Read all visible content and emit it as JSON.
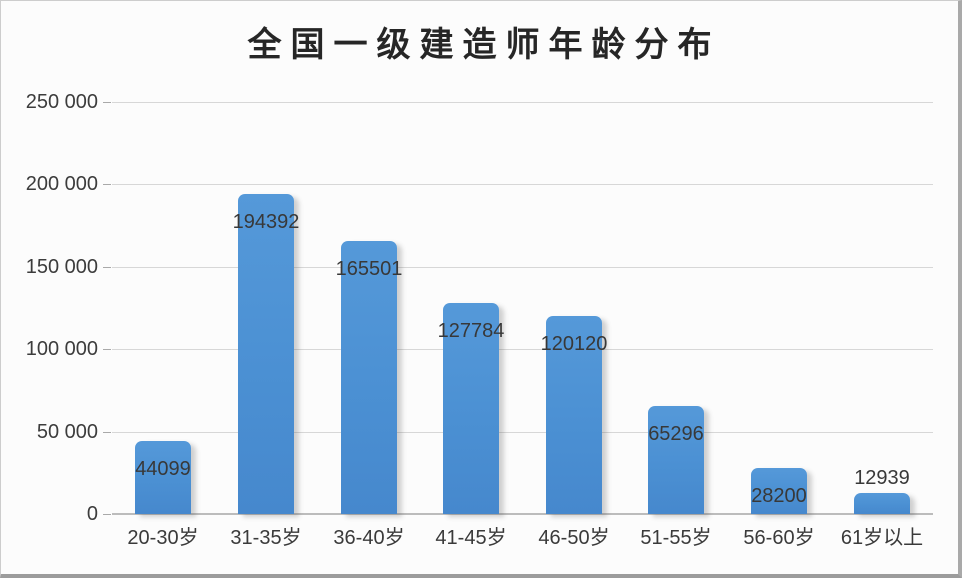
{
  "chart_data": {
    "type": "bar",
    "title": "全国一级建造师年龄分布",
    "categories": [
      "20-30岁",
      "31-35岁",
      "36-40岁",
      "41-45岁",
      "46-50岁",
      "51-55岁",
      "56-60岁",
      "61岁以上"
    ],
    "values": [
      44099,
      194392,
      165501,
      127784,
      120120,
      65296,
      28200,
      12939
    ],
    "data_labels": [
      "44099",
      "194392",
      "165501",
      "127784",
      "120120",
      "65296",
      "28200",
      "12939"
    ],
    "xlabel": "",
    "ylabel": "",
    "y_axis": {
      "min": 0,
      "max": 250000,
      "step": 50000,
      "tick_labels": [
        "250 000",
        "200 000",
        "150 000",
        "100 000",
        "50 000",
        "0"
      ]
    },
    "grid": true,
    "legend": "none",
    "colors": {
      "bar_fill": "#4b90d3",
      "bar_fill_light": "#5599d9",
      "gridline": "#d7d7d7",
      "axis_line": "#bcbcbc",
      "text": "#3a3a3a",
      "title_text": "#262626",
      "background": "#fcfcfc"
    }
  }
}
